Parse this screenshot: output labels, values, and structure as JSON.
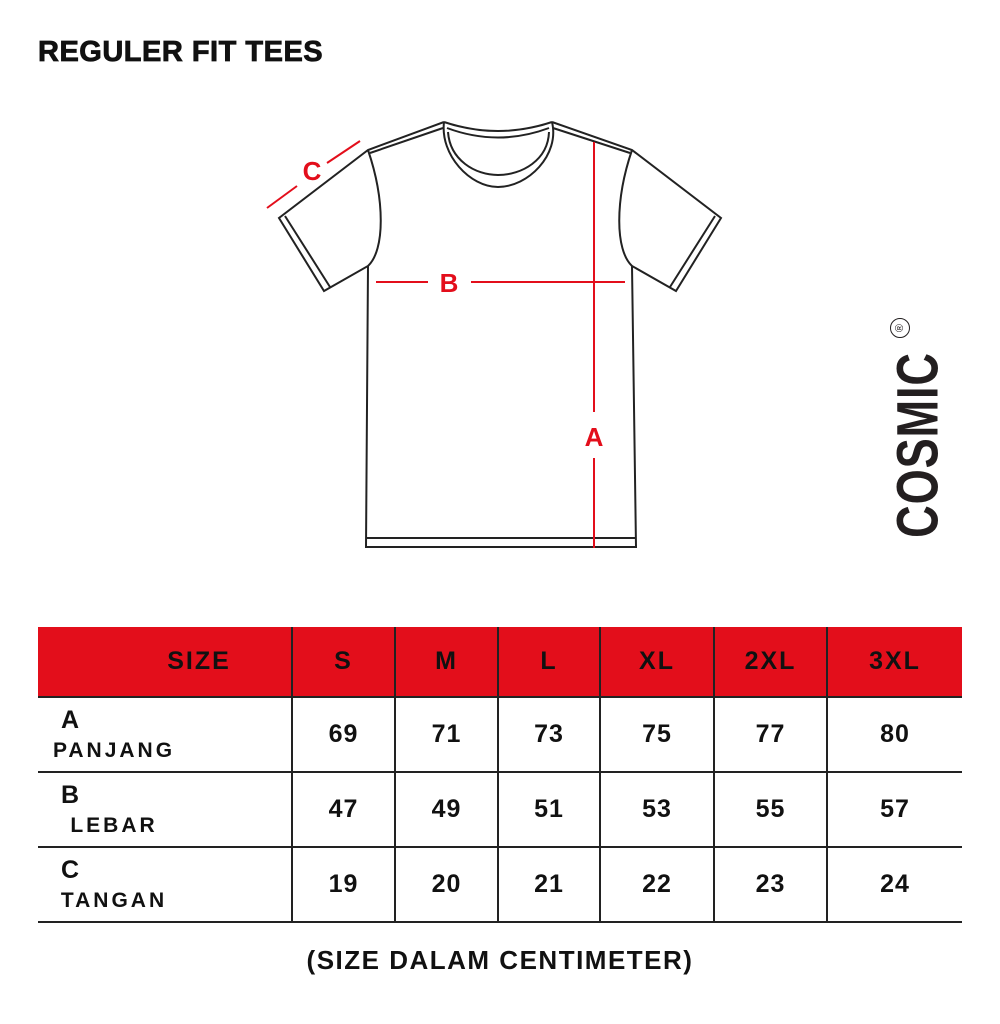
{
  "title": "REGULER FIT TEES",
  "diagram": {
    "labels": {
      "a": "A",
      "b": "B",
      "c": "C"
    },
    "line_color": "#e30e1b"
  },
  "brand": {
    "name": "COSMIC",
    "mark": "®"
  },
  "table": {
    "header_color": "#e30e1b",
    "headers": [
      "SIZE",
      "S",
      "M",
      "L",
      "XL",
      "2XL",
      "3XL"
    ],
    "rows": [
      {
        "letter": "A",
        "name": "PANJANG",
        "values": [
          "69",
          "71",
          "73",
          "75",
          "77",
          "80"
        ]
      },
      {
        "letter": "B",
        "name": "LEBAR",
        "values": [
          "47",
          "49",
          "51",
          "53",
          "55",
          "57"
        ]
      },
      {
        "letter": "C",
        "name": "TANGAN",
        "values": [
          "19",
          "20",
          "21",
          "22",
          "23",
          "24"
        ]
      }
    ]
  },
  "footnote": "(SIZE DALAM CENTIMETER)"
}
